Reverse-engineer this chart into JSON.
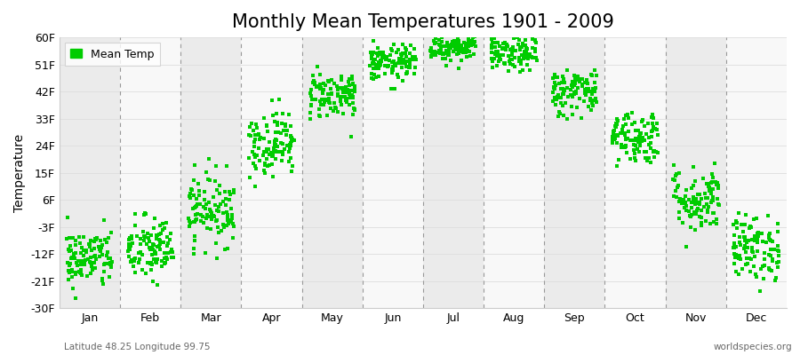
{
  "title": "Monthly Mean Temperatures 1901 - 2009",
  "ylabel": "Temperature",
  "xlabel_bottom_left": "Latitude 48.25 Longitude 99.75",
  "xlabel_bottom_right": "worldspecies.org",
  "legend_label": "Mean Temp",
  "ylim": [
    -30,
    60
  ],
  "yticks": [
    -30,
    -21,
    -12,
    -3,
    6,
    15,
    24,
    33,
    42,
    51,
    60
  ],
  "ytick_labels": [
    "-30F",
    "-21F",
    "-12F",
    "-3F",
    "6F",
    "15F",
    "24F",
    "33F",
    "42F",
    "51F",
    "60F"
  ],
  "months": [
    "Jan",
    "Feb",
    "Mar",
    "Apr",
    "May",
    "Jun",
    "Jul",
    "Aug",
    "Sep",
    "Oct",
    "Nov",
    "Dec"
  ],
  "monthly_mean_F": [
    -13.5,
    -10.5,
    3.0,
    25.0,
    41.0,
    51.5,
    57.0,
    54.5,
    42.0,
    27.0,
    6.0,
    -10.0
  ],
  "monthly_std_F": [
    5.0,
    5.5,
    6.0,
    5.5,
    4.0,
    3.0,
    2.5,
    3.0,
    4.0,
    4.5,
    5.5,
    5.5
  ],
  "n_years": 109,
  "scatter_color": "#00cc00",
  "background_color": "#ffffff",
  "band_color_odd": "#ebebeb",
  "band_color_even": "#f8f8f8",
  "marker": "s",
  "marker_size": 3,
  "title_fontsize": 15,
  "axis_fontsize": 10,
  "tick_fontsize": 9,
  "legend_fontsize": 9,
  "dash_color": "#999999",
  "grid_color": "#dddddd"
}
